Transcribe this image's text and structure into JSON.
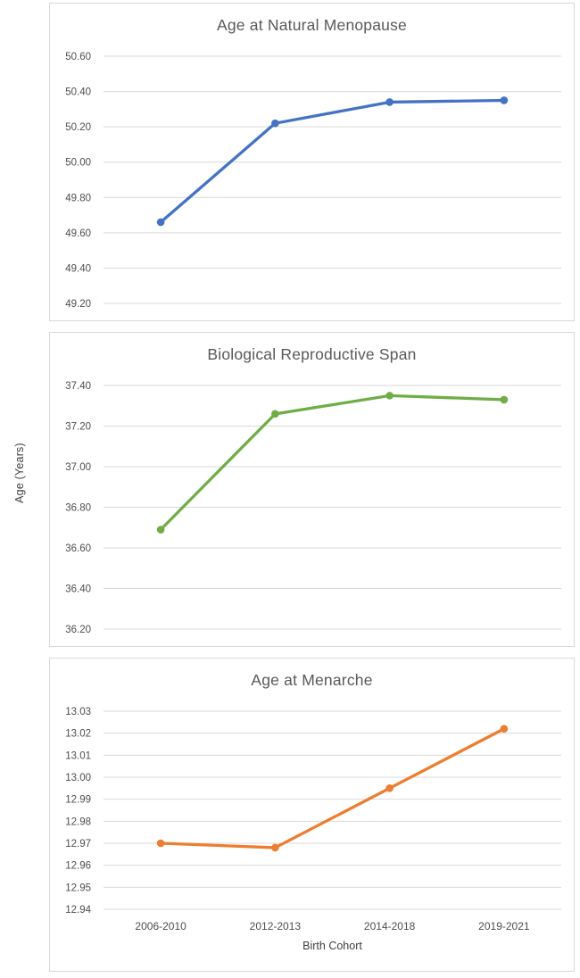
{
  "figure": {
    "ylabel": "Age (Years)",
    "xlabel": "Birth Cohort",
    "categories": [
      "2006-2010",
      "2012-2013",
      "2014-2018",
      "2019-2021"
    ],
    "grid_color": "#d9d9d9",
    "text_color": "#4d4d4d",
    "title_color": "#595959"
  },
  "chart_data": [
    {
      "type": "line",
      "title": "Age at Natural Menopause",
      "categories": [
        "2006-2010",
        "2012-2013",
        "2014-2018",
        "2019-2021"
      ],
      "series": [
        {
          "name": "Age at Natural Menopause",
          "values": [
            49.66,
            50.22,
            50.34,
            50.35
          ]
        }
      ],
      "color": "#4472C4",
      "y_ticks": [
        "50.60",
        "50.40",
        "50.20",
        "50.00",
        "49.80",
        "49.60",
        "49.40",
        "49.20"
      ],
      "ylim": [
        49.2,
        50.6
      ],
      "xlabel": "",
      "ylabel": "",
      "grid": true,
      "legend": "none"
    },
    {
      "type": "line",
      "title": "Biological Reproductive Span",
      "categories": [
        "2006-2010",
        "2012-2013",
        "2014-2018",
        "2019-2021"
      ],
      "series": [
        {
          "name": "Biological Reproductive Span",
          "values": [
            36.69,
            37.26,
            37.35,
            37.33
          ]
        }
      ],
      "color": "#70AD47",
      "y_ticks": [
        "37.40",
        "37.20",
        "37.00",
        "36.80",
        "36.60",
        "36.40",
        "36.20"
      ],
      "ylim": [
        36.2,
        37.4
      ],
      "xlabel": "",
      "ylabel": "",
      "grid": true,
      "legend": "none"
    },
    {
      "type": "line",
      "title": "Age at Menarche",
      "categories": [
        "2006-2010",
        "2012-2013",
        "2014-2018",
        "2019-2021"
      ],
      "series": [
        {
          "name": "Age at Menarche",
          "values": [
            12.97,
            12.968,
            12.995,
            13.022
          ]
        }
      ],
      "color": "#ED7D31",
      "y_ticks": [
        "13.03",
        "13.02",
        "13.01",
        "13.00",
        "12.99",
        "12.98",
        "12.97",
        "12.96",
        "12.95",
        "12.94"
      ],
      "ylim": [
        12.94,
        13.03
      ],
      "xlabel": "Birth Cohort",
      "ylabel": "",
      "grid": true,
      "legend": "none"
    }
  ]
}
